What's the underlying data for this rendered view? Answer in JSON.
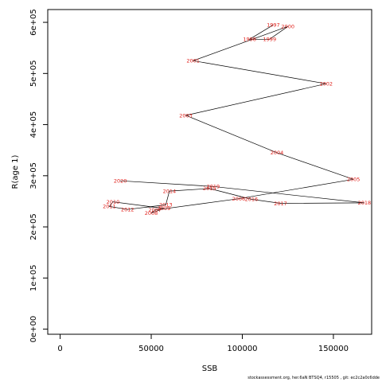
{
  "chart_data": {
    "type": "line",
    "xlabel": "SSB",
    "ylabel": "R(age 1)",
    "xlim": [
      -6800,
      171000
    ],
    "ylim": [
      -10000,
      625000
    ],
    "x_ticks": [
      0,
      50000,
      100000,
      150000
    ],
    "x_tick_labels": [
      "0",
      "50000",
      "100000",
      "150000"
    ],
    "y_ticks": [
      0,
      100000,
      200000,
      300000,
      400000,
      500000,
      600000
    ],
    "y_tick_labels": [
      "0e+00",
      "1e+05",
      "2e+05",
      "3e+05",
      "4e+05",
      "5e+05",
      "6e+05"
    ],
    "grid": false,
    "line_color": "#000000",
    "label_color": "#e0201b",
    "points": [
      {
        "year": "1997",
        "x": 117000,
        "y": 595000
      },
      {
        "year": "1998",
        "x": 104000,
        "y": 567000
      },
      {
        "year": "1999",
        "x": 115000,
        "y": 567000
      },
      {
        "year": "2000",
        "x": 125000,
        "y": 592000
      },
      {
        "year": "2001",
        "x": 73000,
        "y": 525000
      },
      {
        "year": "2002",
        "x": 146000,
        "y": 480000
      },
      {
        "year": "2003",
        "x": 69000,
        "y": 418000
      },
      {
        "year": "2004",
        "x": 119000,
        "y": 345000
      },
      {
        "year": "2005",
        "x": 161000,
        "y": 293000
      },
      {
        "year": "2006",
        "x": 98000,
        "y": 255000
      },
      {
        "year": "2007",
        "x": 52000,
        "y": 233000
      },
      {
        "year": "2008",
        "x": 50000,
        "y": 227000
      },
      {
        "year": "2009",
        "x": 57000,
        "y": 236000
      },
      {
        "year": "2010",
        "x": 29000,
        "y": 249000
      },
      {
        "year": "2011",
        "x": 27000,
        "y": 240000
      },
      {
        "year": "2012",
        "x": 37000,
        "y": 234000
      },
      {
        "year": "2013",
        "x": 58000,
        "y": 243000
      },
      {
        "year": "2014",
        "x": 60000,
        "y": 270000
      },
      {
        "year": "2015",
        "x": 82000,
        "y": 275000
      },
      {
        "year": "2016",
        "x": 105000,
        "y": 254000
      },
      {
        "year": "2017",
        "x": 121000,
        "y": 246000
      },
      {
        "year": "2018",
        "x": 167000,
        "y": 247000
      },
      {
        "year": "2019",
        "x": 84000,
        "y": 279000
      },
      {
        "year": "2020",
        "x": 33000,
        "y": 290000
      }
    ]
  },
  "footer": "stockassessment.org,  her.6aN  BTSQ4,  r15505 ,  git: ec2c2a0c6dde"
}
